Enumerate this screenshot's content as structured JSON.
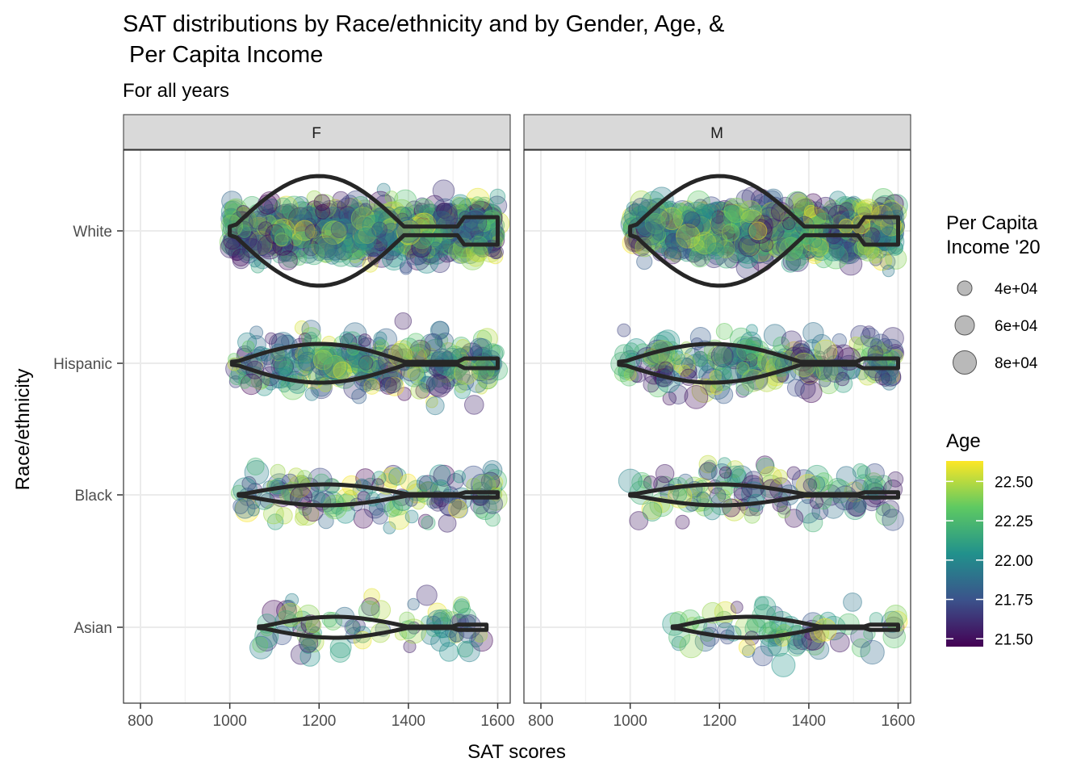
{
  "chart_data": {
    "type": "scatter",
    "subtype": "jittered scatter with violin overlay, faceted",
    "title": "SAT distributions by Race/ethnicity and by Gender, Age, &",
    "title_line2": " Per Capita Income",
    "subtitle": "For all years",
    "xlabel": "SAT scores",
    "ylabel": "Race/ethnicity",
    "xlim": [
      762,
      1628
    ],
    "x_ticks": [
      800,
      1000,
      1200,
      1400,
      1600
    ],
    "x_tick_labels": [
      "800",
      "1000",
      "1200",
      "1400",
      "1600"
    ],
    "categories": [
      "White",
      "Hispanic",
      "Black",
      "Asian"
    ],
    "facets": [
      "F",
      "M"
    ],
    "grid": true,
    "theme": "bw",
    "point_alpha": 0.3,
    "violin_color": "#262626",
    "ranges": {
      "F": {
        "White": {
          "min": 1000,
          "max": 1600,
          "peak": 1230
        },
        "Hispanic": {
          "min": 1005,
          "max": 1600,
          "peak": 1200
        },
        "Black": {
          "min": 1020,
          "max": 1600,
          "peak": 1300
        },
        "Asian": {
          "min": 1065,
          "max": 1575,
          "peak": 1350
        }
      },
      "M": {
        "White": {
          "min": 1000,
          "max": 1600,
          "peak": 1260
        },
        "Hispanic": {
          "min": 975,
          "max": 1600,
          "peak": 1265
        },
        "Black": {
          "min": 1000,
          "max": 1600,
          "peak": 1300
        },
        "Asian": {
          "min": 1095,
          "max": 1600,
          "peak": 1300
        }
      }
    },
    "counts": {
      "F": {
        "White": 850,
        "Hispanic": 300,
        "Black": 140,
        "Asian": 85
      },
      "M": {
        "White": 780,
        "Hispanic": 250,
        "Black": 120,
        "Asian": 75
      }
    },
    "size_legend": {
      "title_line1": "Per Capita",
      "title_line2": "Income '20",
      "labels": [
        "4e+04",
        "6e+04",
        "8e+04"
      ],
      "values": [
        40000,
        60000,
        80000
      ]
    },
    "color_legend": {
      "title": "Age",
      "labels": [
        "22.50",
        "22.25",
        "22.00",
        "21.75",
        "21.50"
      ],
      "values": [
        22.5,
        22.25,
        22.0,
        21.75,
        21.5
      ],
      "range": [
        21.45,
        22.63
      ],
      "colormap": [
        "#440154",
        "#3b528b",
        "#21918c",
        "#5ec962",
        "#fde725"
      ]
    }
  }
}
